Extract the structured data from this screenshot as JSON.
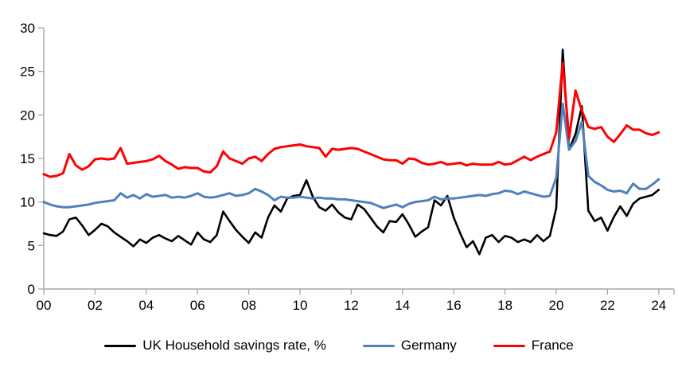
{
  "chart_data": {
    "type": "line",
    "title": "",
    "xlabel": "",
    "ylabel": "",
    "x_start": 2000,
    "x_step": 0.25,
    "xlim": [
      2000,
      2024.6
    ],
    "ylim": [
      0,
      30
    ],
    "grid": false,
    "legend_position": "bottom",
    "axis_color": "#a6a6a6",
    "x_tick_labels": [
      "00",
      "02",
      "04",
      "06",
      "08",
      "10",
      "12",
      "14",
      "16",
      "18",
      "20",
      "22",
      "24"
    ],
    "x_tick_years": [
      2000,
      2002,
      2004,
      2006,
      2008,
      2010,
      2012,
      2014,
      2016,
      2018,
      2020,
      2022,
      2024
    ],
    "y_tick_labels": [
      "0",
      "5",
      "10",
      "15",
      "20",
      "25",
      "30"
    ],
    "y_tick_values": [
      0,
      5,
      10,
      15,
      20,
      25,
      30
    ],
    "series": [
      {
        "name": "UK Household savings rate, %",
        "color": "#000000",
        "values": [
          6.4,
          6.2,
          6.1,
          6.6,
          8.0,
          8.2,
          7.3,
          6.2,
          6.8,
          7.5,
          7.2,
          6.5,
          6.0,
          5.5,
          4.9,
          5.7,
          5.3,
          5.9,
          6.2,
          5.8,
          5.5,
          6.1,
          5.6,
          5.1,
          6.5,
          5.7,
          5.4,
          6.2,
          8.9,
          7.8,
          6.8,
          6.0,
          5.3,
          6.5,
          5.9,
          8.2,
          9.6,
          8.9,
          10.4,
          10.7,
          10.8,
          12.5,
          10.6,
          9.4,
          9.0,
          9.7,
          8.8,
          8.2,
          8.0,
          9.7,
          9.2,
          8.2,
          7.2,
          6.5,
          7.8,
          7.7,
          8.6,
          7.4,
          6.0,
          6.6,
          7.1,
          10.2,
          9.6,
          10.7,
          8.2,
          6.4,
          4.8,
          5.5,
          4.0,
          5.9,
          6.2,
          5.4,
          6.1,
          5.9,
          5.4,
          5.7,
          5.4,
          6.2,
          5.5,
          6.1,
          9.3,
          27.5,
          16.0,
          17.8,
          21.0,
          9.0,
          7.8,
          8.2,
          6.7,
          8.3,
          9.5,
          8.4,
          9.8,
          10.4,
          10.6,
          10.8,
          11.4
        ]
      },
      {
        "name": "Germany",
        "color": "#4f81bd",
        "values": [
          10.0,
          9.7,
          9.5,
          9.4,
          9.4,
          9.5,
          9.6,
          9.7,
          9.9,
          10.0,
          10.1,
          10.2,
          11.0,
          10.5,
          10.8,
          10.4,
          10.9,
          10.6,
          10.7,
          10.8,
          10.5,
          10.6,
          10.5,
          10.7,
          11.0,
          10.6,
          10.5,
          10.6,
          10.8,
          11.0,
          10.7,
          10.8,
          11.0,
          11.5,
          11.2,
          10.8,
          10.2,
          10.6,
          10.5,
          10.5,
          10.6,
          10.5,
          10.4,
          10.5,
          10.4,
          10.4,
          10.3,
          10.3,
          10.2,
          10.1,
          10.0,
          9.9,
          9.6,
          9.3,
          9.5,
          9.7,
          9.4,
          9.8,
          10.0,
          10.1,
          10.2,
          10.6,
          10.3,
          10.4,
          10.4,
          10.5,
          10.6,
          10.7,
          10.8,
          10.7,
          10.9,
          11.0,
          11.3,
          11.2,
          10.9,
          11.2,
          11.0,
          10.8,
          10.6,
          10.7,
          12.8,
          21.3,
          16.0,
          17.0,
          19.2,
          13.0,
          12.3,
          11.9,
          11.4,
          11.2,
          11.3,
          11.0,
          12.1,
          11.5,
          11.5,
          12.0,
          12.6
        ]
      },
      {
        "name": "France",
        "color": "#ff0000",
        "values": [
          13.2,
          12.9,
          13.0,
          13.3,
          15.5,
          14.2,
          13.7,
          14.1,
          14.9,
          15.0,
          14.9,
          15.0,
          16.2,
          14.4,
          14.5,
          14.6,
          14.7,
          14.9,
          15.3,
          14.7,
          14.3,
          13.8,
          14.0,
          13.9,
          13.9,
          13.5,
          13.4,
          14.1,
          15.8,
          15.0,
          14.7,
          14.4,
          15.0,
          15.2,
          14.7,
          15.5,
          16.1,
          16.3,
          16.4,
          16.5,
          16.6,
          16.4,
          16.3,
          16.2,
          15.2,
          16.1,
          16.0,
          16.1,
          16.2,
          16.1,
          15.8,
          15.5,
          15.2,
          14.9,
          14.8,
          14.8,
          14.4,
          15.0,
          14.9,
          14.5,
          14.3,
          14.4,
          14.6,
          14.3,
          14.4,
          14.5,
          14.2,
          14.4,
          14.3,
          14.3,
          14.3,
          14.6,
          14.3,
          14.4,
          14.8,
          15.2,
          14.8,
          15.2,
          15.5,
          15.8,
          18.0,
          26.0,
          17.3,
          22.8,
          20.5,
          18.6,
          18.4,
          18.6,
          17.5,
          16.9,
          17.8,
          18.8,
          18.3,
          18.3,
          17.9,
          17.7,
          18.0
        ]
      }
    ]
  },
  "legend": {
    "items": [
      {
        "label": "UK Household savings rate, %"
      },
      {
        "label": "Germany"
      },
      {
        "label": "France"
      }
    ]
  }
}
